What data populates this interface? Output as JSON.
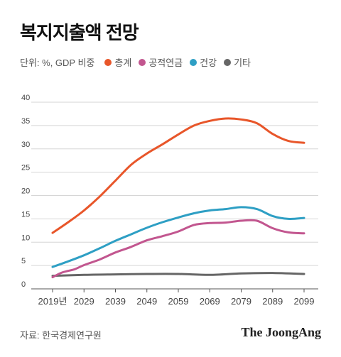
{
  "chart_data": {
    "type": "line",
    "title": "복지지출액 전망",
    "unit_label": "단위: %, GDP 비중",
    "x": [
      "2019년",
      "2029",
      "2039",
      "2049",
      "2059",
      "2069",
      "2079",
      "2089",
      "2099"
    ],
    "x_values": [
      2019,
      2029,
      2039,
      2049,
      2059,
      2069,
      2079,
      2089,
      2099
    ],
    "ylim": [
      0,
      40
    ],
    "yticks": [
      0,
      5,
      10,
      15,
      20,
      25,
      30,
      35,
      40
    ],
    "grid": true,
    "legend_position": "top-left",
    "series": [
      {
        "name": "총계",
        "color": "#e8562a",
        "points": [
          [
            2019,
            12.0
          ],
          [
            2024,
            14.3
          ],
          [
            2029,
            16.8
          ],
          [
            2034,
            19.8
          ],
          [
            2039,
            23.2
          ],
          [
            2044,
            26.6
          ],
          [
            2049,
            29.0
          ],
          [
            2054,
            31.0
          ],
          [
            2059,
            33.1
          ],
          [
            2064,
            35.0
          ],
          [
            2069,
            36.0
          ],
          [
            2074,
            36.5
          ],
          [
            2079,
            36.3
          ],
          [
            2084,
            35.5
          ],
          [
            2089,
            33.2
          ],
          [
            2094,
            31.7
          ],
          [
            2099,
            31.3
          ]
        ]
      },
      {
        "name": "공적연금",
        "color": "#c2568f",
        "points": [
          [
            2019,
            2.5
          ],
          [
            2022,
            3.5
          ],
          [
            2026,
            4.2
          ],
          [
            2029,
            5.1
          ],
          [
            2034,
            6.3
          ],
          [
            2039,
            7.8
          ],
          [
            2044,
            9.0
          ],
          [
            2049,
            10.4
          ],
          [
            2054,
            11.3
          ],
          [
            2059,
            12.3
          ],
          [
            2064,
            13.7
          ],
          [
            2069,
            14.1
          ],
          [
            2074,
            14.2
          ],
          [
            2079,
            14.6
          ],
          [
            2084,
            14.6
          ],
          [
            2089,
            13.0
          ],
          [
            2094,
            12.1
          ],
          [
            2099,
            11.9
          ]
        ]
      },
      {
        "name": "건강",
        "color": "#2e9fc4",
        "points": [
          [
            2019,
            4.7
          ],
          [
            2024,
            5.9
          ],
          [
            2029,
            7.2
          ],
          [
            2034,
            8.7
          ],
          [
            2039,
            10.3
          ],
          [
            2044,
            11.7
          ],
          [
            2049,
            13.1
          ],
          [
            2054,
            14.3
          ],
          [
            2059,
            15.3
          ],
          [
            2064,
            16.2
          ],
          [
            2069,
            16.8
          ],
          [
            2074,
            17.1
          ],
          [
            2079,
            17.5
          ],
          [
            2084,
            17.1
          ],
          [
            2089,
            15.6
          ],
          [
            2094,
            15.0
          ],
          [
            2099,
            15.2
          ]
        ]
      },
      {
        "name": "기타",
        "color": "#666666",
        "points": [
          [
            2019,
            2.8
          ],
          [
            2029,
            3.0
          ],
          [
            2039,
            3.1
          ],
          [
            2049,
            3.2
          ],
          [
            2059,
            3.2
          ],
          [
            2069,
            3.0
          ],
          [
            2079,
            3.3
          ],
          [
            2089,
            3.4
          ],
          [
            2099,
            3.2
          ]
        ]
      }
    ]
  },
  "footer": {
    "source": "자료: 한국경제연구원",
    "brand": "The JoongAng"
  }
}
